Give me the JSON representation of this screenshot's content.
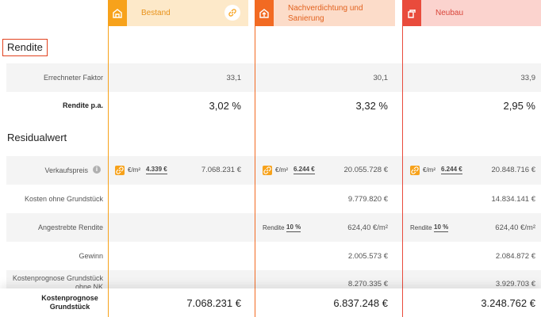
{
  "columns": [
    {
      "title": "Bestand",
      "accent": "#f7a21b",
      "header_bg": "#fde9c9"
    },
    {
      "title": "Nachverdichtung und Sanierung",
      "accent": "#f26a22",
      "header_bg": "#fcdcc9"
    },
    {
      "title": "Neubau",
      "accent": "#e94b3c",
      "header_bg": "#fbd3ce"
    }
  ],
  "sections": {
    "rendite": "Rendite",
    "residualwert": "Residualwert"
  },
  "rows": {
    "faktor": {
      "label": "Errechneter Faktor",
      "values": [
        "33,1",
        "30,1",
        "33,9"
      ]
    },
    "rendite_pa": {
      "label": "Rendite p.a.",
      "values": [
        "3,02 %",
        "3,32 %",
        "2,95 %"
      ]
    },
    "verkaufspreis": {
      "label": "Verkaufspreis",
      "unit": "€/m²",
      "per_m2": [
        "4.339 €",
        "6.244 €",
        "6.244 €"
      ],
      "values": [
        "7.068.231 €",
        "20.055.728 €",
        "20.848.716 €"
      ]
    },
    "kosten_ohne": {
      "label": "Kosten ohne Grundstück",
      "values": [
        "",
        "9.779.820 €",
        "14.834.141 €"
      ]
    },
    "angestrebte": {
      "label": "Angestrebte Rendite",
      "rendite_label": "Rendite",
      "rendite_pct": [
        "",
        "10 %",
        "10 %"
      ],
      "values": [
        "",
        "624,40 €/m²",
        "624,40 €/m²"
      ]
    },
    "gewinn": {
      "label": "Gewinn",
      "values": [
        "",
        "2.005.573 €",
        "2.084.872 €"
      ]
    },
    "kostenprognose_nk": {
      "label": "Kostenprognose Grundstück ohne NK",
      "values": [
        "",
        "8.270.335 €",
        "3.929.703 €"
      ]
    },
    "kostenprognose": {
      "label": "Kostenprognose Grundstück",
      "values": [
        "7.068.231 €",
        "6.837.248 €",
        "3.248.762 €"
      ]
    }
  },
  "icons": {
    "col1": "house-existing-icon",
    "col2": "house-renovate-icon",
    "col3": "building-new-icon",
    "link": "link-icon",
    "info": "info-icon"
  }
}
